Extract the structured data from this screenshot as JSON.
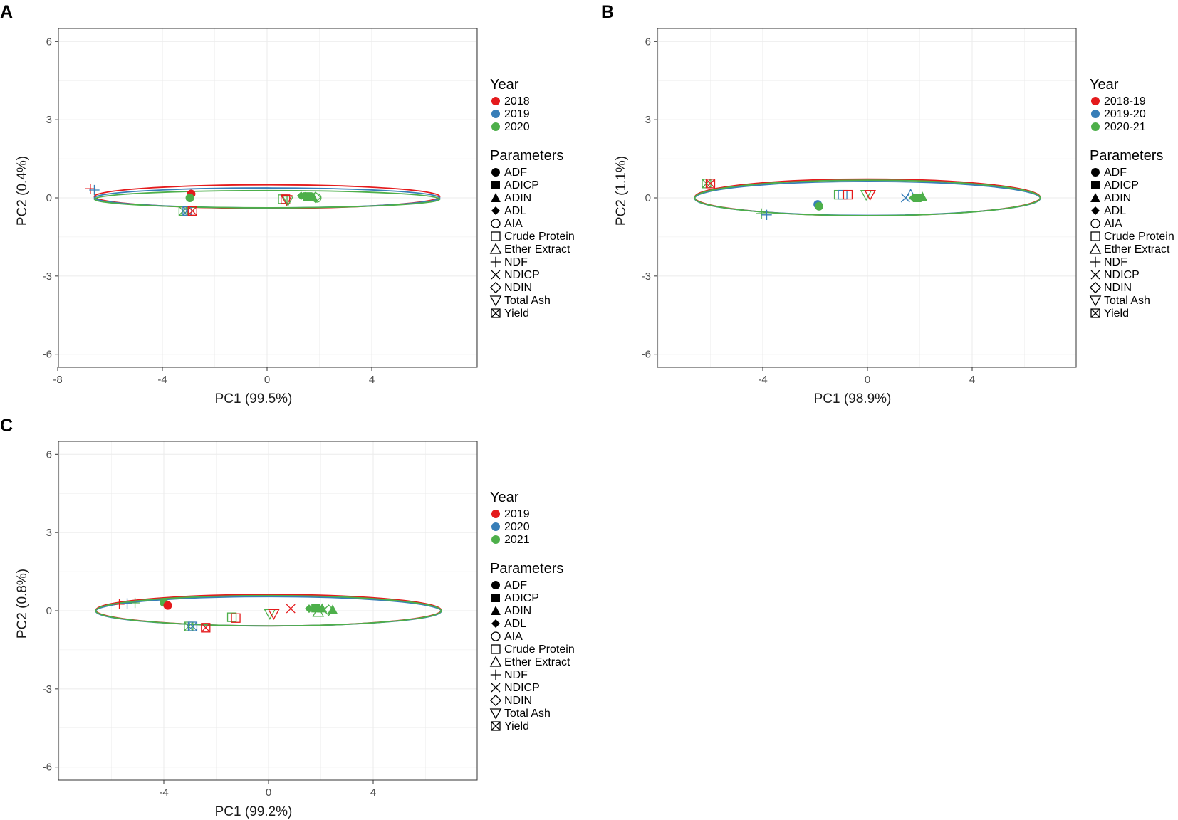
{
  "figure": {
    "panels": [
      "A",
      "B",
      "C"
    ]
  },
  "colors": {
    "red": "#e41a1c",
    "blue": "#377eb8",
    "green": "#4daf4a",
    "grid": "#ebebeb",
    "frame": "#333333"
  },
  "chart_data": [
    {
      "panel": "A",
      "type": "scatter",
      "xlabel": "PC1 (99.5%)",
      "ylabel": "PC2 (0.4%)",
      "xlim": [
        -8,
        8
      ],
      "ylim": [
        -6.5,
        6.5
      ],
      "xticks": [
        -8,
        -4,
        0,
        4
      ],
      "yticks": [
        -6,
        -3,
        0,
        3,
        6
      ],
      "legend_year_title": "Year",
      "years": [
        "2018",
        "2019",
        "2020"
      ],
      "legend_param_title": "Parameters",
      "parameters": [
        "ADF",
        "ADICP",
        "ADIN",
        "ADL",
        "AIA",
        "Crude Protein",
        "Ether Extract",
        "NDF",
        "NDICP",
        "NDIN",
        "Total Ash",
        "Yield"
      ],
      "ellipses": [
        {
          "year": "2018",
          "cx": 0,
          "cy": 0.05,
          "rx": 6.6,
          "ry": 0.45
        },
        {
          "year": "2019",
          "cx": 0,
          "cy": 0.0,
          "rx": 6.6,
          "ry": 0.38
        },
        {
          "year": "2020",
          "cx": 0,
          "cy": -0.05,
          "rx": 6.6,
          "ry": 0.33
        }
      ],
      "points": [
        {
          "param": "NDF",
          "year": "2018",
          "x": -6.75,
          "y": 0.35
        },
        {
          "param": "NDF",
          "year": "2019",
          "x": -6.6,
          "y": 0.3
        },
        {
          "param": "ADF",
          "year": "2018",
          "x": -2.9,
          "y": 0.15
        },
        {
          "param": "ADF",
          "year": "2020",
          "x": -2.95,
          "y": 0.0
        },
        {
          "param": "Yield",
          "year": "2020",
          "x": -3.2,
          "y": -0.5
        },
        {
          "param": "Yield",
          "year": "2019",
          "x": -3.05,
          "y": -0.5
        },
        {
          "param": "Yield",
          "year": "2018",
          "x": -2.85,
          "y": -0.5
        },
        {
          "param": "Crude Protein",
          "year": "2020",
          "x": 0.6,
          "y": -0.05
        },
        {
          "param": "Crude Protein",
          "year": "2018",
          "x": 0.7,
          "y": -0.05
        },
        {
          "param": "Total Ash",
          "year": "2018",
          "x": 0.75,
          "y": -0.08
        },
        {
          "param": "Total Ash",
          "year": "2020",
          "x": 0.8,
          "y": -0.1
        },
        {
          "param": "ADL",
          "year": "2020",
          "x": 1.3,
          "y": 0.08
        },
        {
          "param": "ADICP",
          "year": "2020",
          "x": 1.55,
          "y": 0.05
        },
        {
          "param": "ADIN",
          "year": "2020",
          "x": 1.75,
          "y": 0.05
        },
        {
          "param": "NDICP",
          "year": "2020",
          "x": 1.6,
          "y": 0.05
        },
        {
          "param": "NDIN",
          "year": "2020",
          "x": 1.85,
          "y": 0.02
        },
        {
          "param": "AIA",
          "year": "2020",
          "x": 1.9,
          "y": 0.0
        }
      ]
    },
    {
      "panel": "B",
      "type": "scatter",
      "xlabel": "PC1 (98.9%)",
      "ylabel": "PC2 (1.1%)",
      "xlim": [
        -8,
        8
      ],
      "ylim": [
        -6.5,
        6.5
      ],
      "xticks": [
        -4,
        0,
        4
      ],
      "yticks": [
        -6,
        -3,
        0,
        3,
        6
      ],
      "legend_year_title": "Year",
      "years": [
        "2018-19",
        "2019-20",
        "2020-21"
      ],
      "legend_param_title": "Parameters",
      "parameters": [
        "ADF",
        "ADICP",
        "ADIN",
        "ADL",
        "AIA",
        "Crude Protein",
        "Ether Extract",
        "NDF",
        "NDICP",
        "NDIN",
        "Total Ash",
        "Yield"
      ],
      "ellipses": [
        {
          "year": "2018-19",
          "cx": 0,
          "cy": 0.02,
          "rx": 6.6,
          "ry": 0.7
        },
        {
          "year": "2019-20",
          "cx": 0,
          "cy": -0.02,
          "rx": 6.6,
          "ry": 0.65
        },
        {
          "year": "2020-21",
          "cx": 0,
          "cy": 0.0,
          "rx": 6.6,
          "ry": 0.68
        }
      ],
      "points": [
        {
          "param": "Yield",
          "year": "2020-21",
          "x": -6.15,
          "y": 0.55
        },
        {
          "param": "Yield",
          "year": "2018-19",
          "x": -6.0,
          "y": 0.55
        },
        {
          "param": "NDF",
          "year": "2020-21",
          "x": -4.05,
          "y": -0.6
        },
        {
          "param": "NDF",
          "year": "2019-20",
          "x": -3.85,
          "y": -0.65
        },
        {
          "param": "ADF",
          "year": "2019-20",
          "x": -1.9,
          "y": -0.25
        },
        {
          "param": "ADF",
          "year": "2020-21",
          "x": -1.85,
          "y": -0.32
        },
        {
          "param": "Crude Protein",
          "year": "2020-21",
          "x": -1.1,
          "y": 0.12
        },
        {
          "param": "Crude Protein",
          "year": "2019-20",
          "x": -0.95,
          "y": 0.12
        },
        {
          "param": "Crude Protein",
          "year": "2018-19",
          "x": -0.75,
          "y": 0.12
        },
        {
          "param": "Total Ash",
          "year": "2020-21",
          "x": -0.05,
          "y": 0.12
        },
        {
          "param": "Total Ash",
          "year": "2018-19",
          "x": 0.1,
          "y": 0.12
        },
        {
          "param": "NDICP",
          "year": "2019-20",
          "x": 1.45,
          "y": 0.0
        },
        {
          "param": "Ether Extract",
          "year": "2019-20",
          "x": 1.65,
          "y": 0.12
        },
        {
          "param": "ADL",
          "year": "2020-21",
          "x": 1.75,
          "y": 0.0
        },
        {
          "param": "ADICP",
          "year": "2020-21",
          "x": 1.9,
          "y": 0.0
        },
        {
          "param": "ADIN",
          "year": "2020-21",
          "x": 2.1,
          "y": 0.05
        }
      ]
    },
    {
      "panel": "C",
      "type": "scatter",
      "xlabel": "PC1 (99.2%)",
      "ylabel": "PC2 (0.8%)",
      "xlim": [
        -8,
        8
      ],
      "ylim": [
        -6.5,
        6.5
      ],
      "xticks": [
        -4,
        0,
        4
      ],
      "yticks": [
        -6,
        -3,
        0,
        3,
        6
      ],
      "legend_year_title": "Year",
      "years": [
        "2019",
        "2020",
        "2021"
      ],
      "legend_param_title": "Parameters",
      "parameters": [
        "ADF",
        "ADICP",
        "ADIN",
        "ADL",
        "AIA",
        "Crude Protein",
        "Ether Extract",
        "NDF",
        "NDICP",
        "NDIN",
        "Total Ash",
        "Yield"
      ],
      "ellipses": [
        {
          "year": "2019",
          "cx": 0,
          "cy": 0.02,
          "rx": 6.6,
          "ry": 0.6
        },
        {
          "year": "2020",
          "cx": 0,
          "cy": -0.02,
          "rx": 6.6,
          "ry": 0.56
        },
        {
          "year": "2021",
          "cx": 0,
          "cy": 0.0,
          "rx": 6.6,
          "ry": 0.58
        }
      ],
      "points": [
        {
          "param": "NDF",
          "year": "2019",
          "x": -5.7,
          "y": 0.25
        },
        {
          "param": "NDF",
          "year": "2020",
          "x": -5.4,
          "y": 0.28
        },
        {
          "param": "NDF",
          "year": "2021",
          "x": -5.1,
          "y": 0.3
        },
        {
          "param": "ADF",
          "year": "2021",
          "x": -4.0,
          "y": 0.32
        },
        {
          "param": "ADF",
          "year": "2019",
          "x": -3.85,
          "y": 0.2
        },
        {
          "param": "Yield",
          "year": "2021",
          "x": -3.05,
          "y": -0.6
        },
        {
          "param": "Yield",
          "year": "2020",
          "x": -2.9,
          "y": -0.6
        },
        {
          "param": "Yield",
          "year": "2019",
          "x": -2.4,
          "y": -0.65
        },
        {
          "param": "Crude Protein",
          "year": "2021",
          "x": -1.4,
          "y": -0.25
        },
        {
          "param": "Crude Protein",
          "year": "2019",
          "x": -1.25,
          "y": -0.28
        },
        {
          "param": "Total Ash",
          "year": "2021",
          "x": 0.05,
          "y": -0.12
        },
        {
          "param": "Total Ash",
          "year": "2019",
          "x": 0.2,
          "y": -0.12
        },
        {
          "param": "NDICP",
          "year": "2019",
          "x": 0.85,
          "y": 0.08
        },
        {
          "param": "ADL",
          "year": "2021",
          "x": 1.55,
          "y": 0.08
        },
        {
          "param": "ADICP",
          "year": "2021",
          "x": 1.8,
          "y": 0.1
        },
        {
          "param": "Ether Extract",
          "year": "2021",
          "x": 1.9,
          "y": -0.05
        },
        {
          "param": "ADIN",
          "year": "2021",
          "x": 2.05,
          "y": 0.1
        },
        {
          "param": "NDIN",
          "year": "2021",
          "x": 2.3,
          "y": 0.02
        },
        {
          "param": "ADIN",
          "year": "2021",
          "x": 2.45,
          "y": 0.05
        }
      ]
    }
  ]
}
